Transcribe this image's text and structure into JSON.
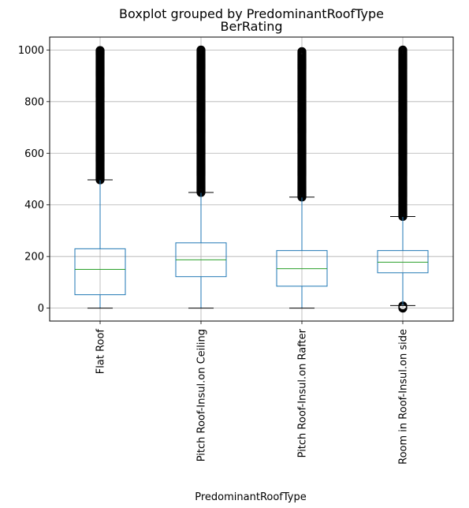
{
  "chart_data": {
    "type": "boxplot",
    "suptitle": "Boxplot grouped by PredominantRoofType",
    "title": "BerRating",
    "xlabel": "PredominantRoofType",
    "ylabel": "",
    "ylim": [
      -50,
      1050
    ],
    "yticks": [
      0,
      200,
      400,
      600,
      800,
      1000
    ],
    "ytick_labels": [
      "0",
      "200",
      "400",
      "600",
      "800",
      "1000"
    ],
    "grid": true,
    "legend": "none",
    "categories": [
      "Flat Roof",
      "Pitch Roof-Insul.on Ceiling",
      "Pitch Roof-Insul.on Rafter",
      "Room in Roof-Insul.on side"
    ],
    "boxes": [
      {
        "whisker_low": 0,
        "q1": 52,
        "median": 150,
        "q3": 230,
        "whisker_high": 497,
        "outliers_high": [
          497,
          1000
        ],
        "outliers_low": []
      },
      {
        "whisker_low": 0,
        "q1": 122,
        "median": 187,
        "q3": 253,
        "whisker_high": 448,
        "outliers_high": [
          448,
          1000
        ],
        "outliers_low": []
      },
      {
        "whisker_low": 0,
        "q1": 85,
        "median": 153,
        "q3": 223,
        "whisker_high": 430,
        "outliers_high": [
          430,
          995
        ],
        "outliers_low": []
      },
      {
        "whisker_low": 10,
        "q1": 137,
        "median": 178,
        "q3": 223,
        "whisker_high": 355,
        "outliers_high": [
          355,
          1000
        ],
        "outliers_low": [
          0,
          10
        ]
      }
    ],
    "colors": {
      "box": "#1f77b4",
      "median": "#2ca02c",
      "whisker": "#1f77b4",
      "cap": "#000000",
      "outlier": "#000000",
      "grid": "#b0b0b0"
    }
  }
}
